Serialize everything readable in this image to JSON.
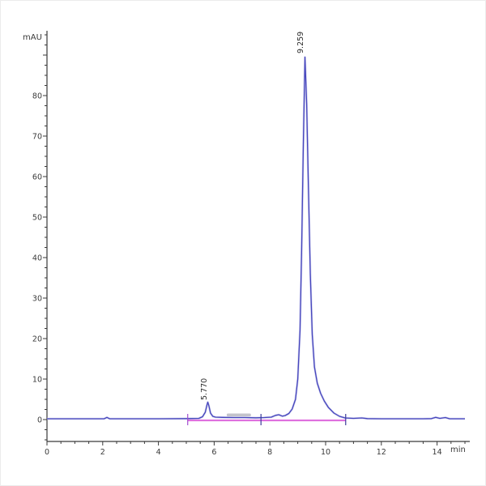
{
  "window": {
    "background": "#ffffff"
  },
  "chart_data": {
    "type": "line",
    "title": "",
    "xlabel": "min",
    "ylabel": "mAU",
    "x_axis": {
      "min": 0,
      "max": 15,
      "major_ticks": [
        0,
        2,
        4,
        6,
        8,
        10,
        12,
        14
      ],
      "minor_step": 0.5,
      "unit": "min"
    },
    "y_axis": {
      "min": -5,
      "max": 95,
      "major_ticks": [
        0,
        10,
        20,
        30,
        40,
        50,
        60,
        70,
        80
      ],
      "minor_step": 2.5,
      "unit": "mAU",
      "grid": false
    },
    "legend": "none",
    "peaks": [
      {
        "retention_time": "5.770",
        "height_mAU": 4.3
      },
      {
        "retention_time": "9.259",
        "height_mAU": 89.5
      }
    ],
    "series": [
      {
        "name": "uv-signal",
        "color": "#4646bd",
        "halo_color": "#c3c3ea",
        "points": [
          [
            0,
            0.2
          ],
          [
            0.5,
            0.2
          ],
          [
            1,
            0.2
          ],
          [
            1.5,
            0.2
          ],
          [
            2.05,
            0.2
          ],
          [
            2.15,
            0.55
          ],
          [
            2.25,
            0.2
          ],
          [
            3,
            0.2
          ],
          [
            4,
            0.2
          ],
          [
            5,
            0.25
          ],
          [
            5.45,
            0.3
          ],
          [
            5.58,
            0.7
          ],
          [
            5.68,
            1.8
          ],
          [
            5.74,
            3.6
          ],
          [
            5.77,
            4.3
          ],
          [
            5.81,
            3.4
          ],
          [
            5.87,
            1.6
          ],
          [
            5.95,
            0.8
          ],
          [
            6.05,
            0.6
          ],
          [
            6.3,
            0.55
          ],
          [
            6.7,
            0.5
          ],
          [
            7.1,
            0.5
          ],
          [
            7.5,
            0.45
          ],
          [
            7.8,
            0.5
          ],
          [
            8.05,
            0.6
          ],
          [
            8.2,
            1.05
          ],
          [
            8.32,
            1.2
          ],
          [
            8.45,
            0.85
          ],
          [
            8.55,
            1.0
          ],
          [
            8.68,
            1.5
          ],
          [
            8.8,
            2.6
          ],
          [
            8.92,
            5
          ],
          [
            9.0,
            10
          ],
          [
            9.08,
            22
          ],
          [
            9.14,
            42
          ],
          [
            9.2,
            68
          ],
          [
            9.259,
            89.5
          ],
          [
            9.32,
            78
          ],
          [
            9.38,
            58
          ],
          [
            9.45,
            36
          ],
          [
            9.52,
            21
          ],
          [
            9.6,
            13
          ],
          [
            9.7,
            9
          ],
          [
            9.82,
            6.5
          ],
          [
            9.95,
            4.6
          ],
          [
            10.1,
            3
          ],
          [
            10.3,
            1.6
          ],
          [
            10.5,
            0.8
          ],
          [
            10.7,
            0.4
          ],
          [
            11,
            0.3
          ],
          [
            11.3,
            0.4
          ],
          [
            11.5,
            0.25
          ],
          [
            12,
            0.2
          ],
          [
            12.5,
            0.2
          ],
          [
            13,
            0.2
          ],
          [
            13.5,
            0.2
          ],
          [
            13.8,
            0.25
          ],
          [
            13.95,
            0.55
          ],
          [
            14.1,
            0.3
          ],
          [
            14.3,
            0.5
          ],
          [
            14.45,
            0.2
          ],
          [
            14.8,
            0.2
          ],
          [
            15,
            0.2
          ]
        ]
      },
      {
        "name": "integration-baseline",
        "color": "#d23fd2",
        "halo_color": "#f0b0ec",
        "points": [
          [
            5.05,
            -0.2
          ],
          [
            10.72,
            -0.2
          ]
        ]
      }
    ],
    "integration_marks": [
      {
        "time": 5.05,
        "color": "#a24fd0"
      },
      {
        "time": 7.68,
        "color": "#3c3c9c"
      },
      {
        "time": 10.72,
        "color": "#3c3c9c"
      }
    ],
    "artifact_bar": {
      "t_start": 6.45,
      "t_end": 7.32,
      "level_mAU": 1.5,
      "color": "#b9b9c2"
    },
    "colors": {
      "axis": "#3a3a3a",
      "text": "#3a3a3a"
    }
  }
}
